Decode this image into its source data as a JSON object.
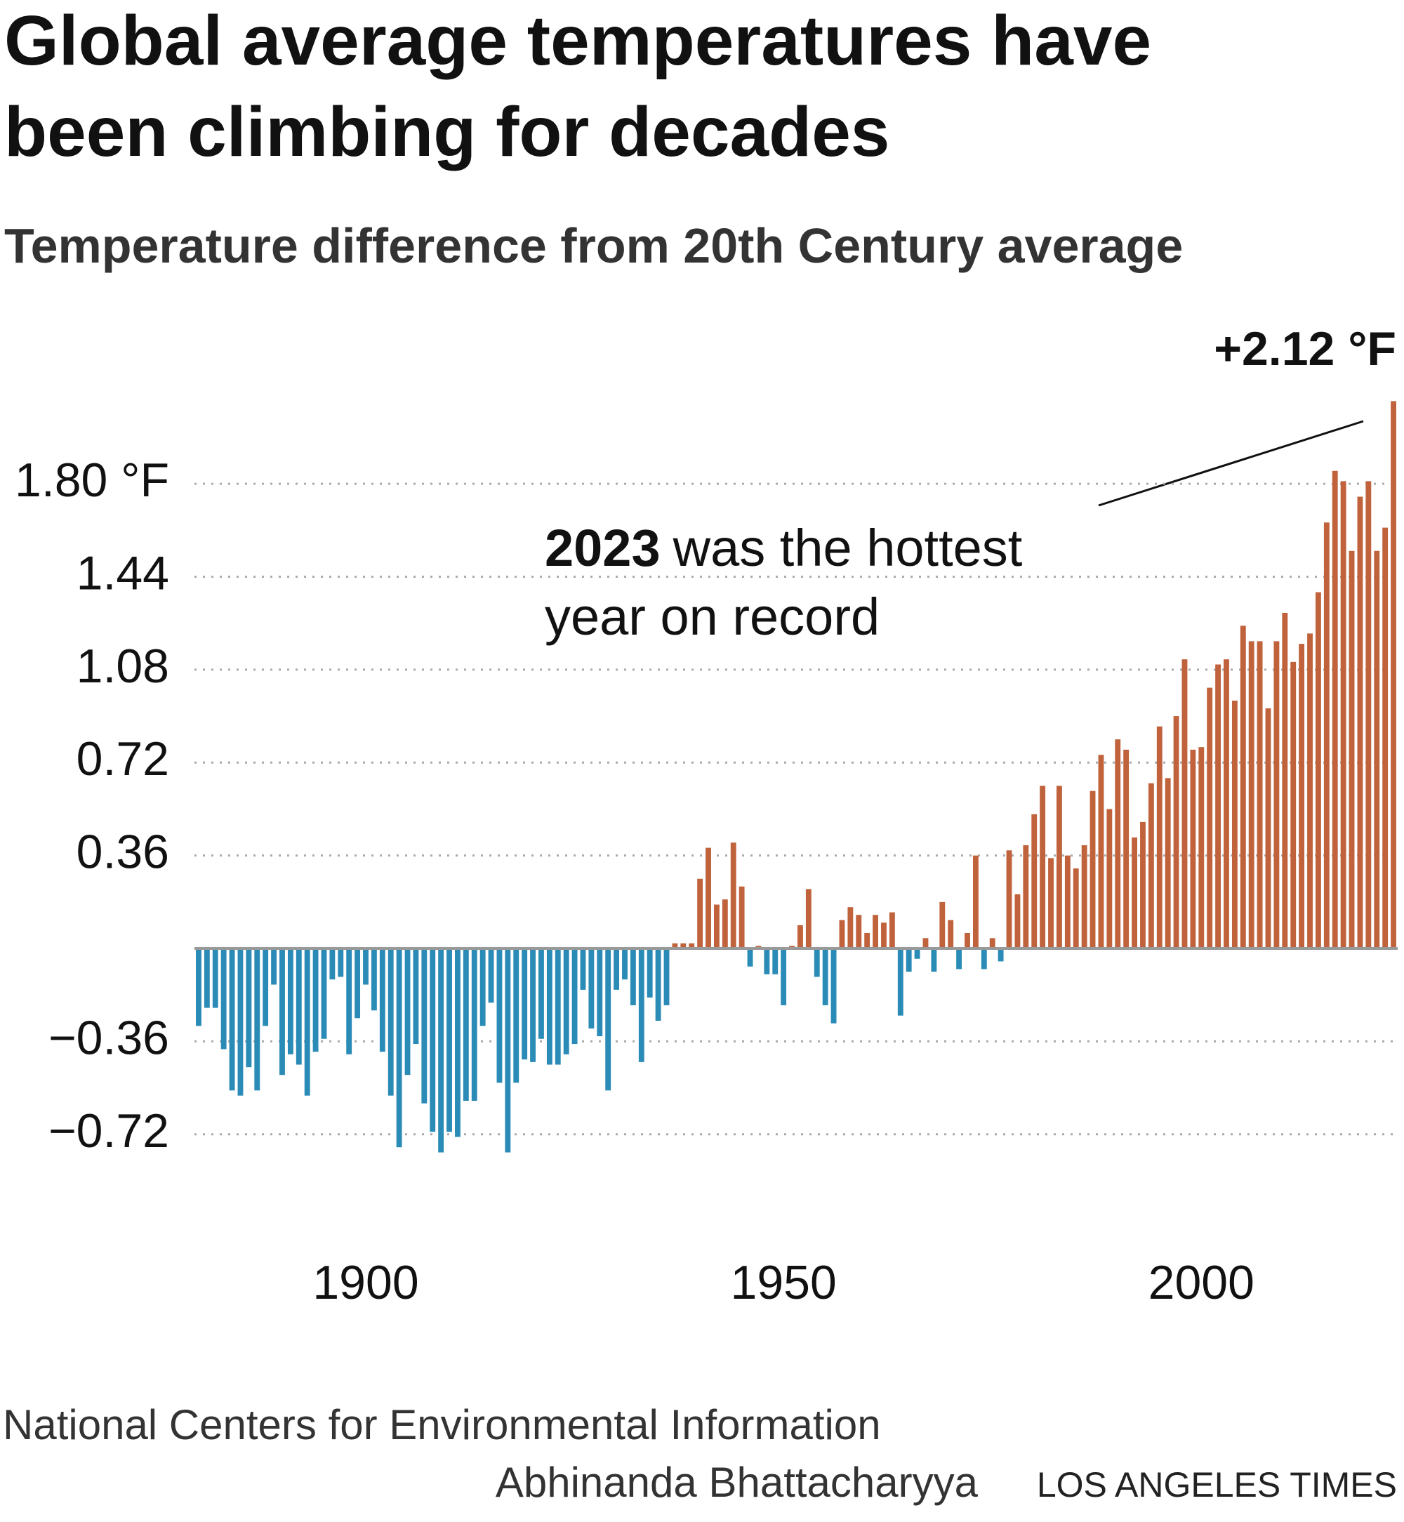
{
  "chart_data": {
    "type": "bar",
    "title": [
      "Global average temperatures have",
      "been climbing for decades"
    ],
    "subtitle": "Temperature difference from 20th Century average",
    "x": [
      1880,
      1881,
      1882,
      1883,
      1884,
      1885,
      1886,
      1887,
      1888,
      1889,
      1890,
      1891,
      1892,
      1893,
      1894,
      1895,
      1896,
      1897,
      1898,
      1899,
      1900,
      1901,
      1902,
      1903,
      1904,
      1905,
      1906,
      1907,
      1908,
      1909,
      1910,
      1911,
      1912,
      1913,
      1914,
      1915,
      1916,
      1917,
      1918,
      1919,
      1920,
      1921,
      1922,
      1923,
      1924,
      1925,
      1926,
      1927,
      1928,
      1929,
      1930,
      1931,
      1932,
      1933,
      1934,
      1935,
      1936,
      1937,
      1938,
      1939,
      1940,
      1941,
      1942,
      1943,
      1944,
      1945,
      1946,
      1947,
      1948,
      1949,
      1950,
      1951,
      1952,
      1953,
      1954,
      1955,
      1956,
      1957,
      1958,
      1959,
      1960,
      1961,
      1962,
      1963,
      1964,
      1965,
      1966,
      1967,
      1968,
      1969,
      1970,
      1971,
      1972,
      1973,
      1974,
      1975,
      1976,
      1977,
      1978,
      1979,
      1980,
      1981,
      1982,
      1983,
      1984,
      1985,
      1986,
      1987,
      1988,
      1989,
      1990,
      1991,
      1992,
      1993,
      1994,
      1995,
      1996,
      1997,
      1998,
      1999,
      2000,
      2001,
      2002,
      2003,
      2004,
      2005,
      2006,
      2007,
      2008,
      2009,
      2010,
      2011,
      2012,
      2013,
      2014,
      2015,
      2016,
      2017,
      2018,
      2019,
      2020,
      2021,
      2022,
      2023
    ],
    "values": [
      -0.3,
      -0.23,
      -0.23,
      -0.39,
      -0.55,
      -0.57,
      -0.46,
      -0.55,
      -0.3,
      -0.14,
      -0.49,
      -0.41,
      -0.45,
      -0.57,
      -0.4,
      -0.35,
      -0.12,
      -0.11,
      -0.41,
      -0.27,
      -0.14,
      -0.24,
      -0.4,
      -0.57,
      -0.77,
      -0.49,
      -0.37,
      -0.6,
      -0.71,
      -0.79,
      -0.71,
      -0.73,
      -0.59,
      -0.59,
      -0.3,
      -0.21,
      -0.52,
      -0.79,
      -0.52,
      -0.43,
      -0.44,
      -0.35,
      -0.45,
      -0.45,
      -0.41,
      -0.37,
      -0.16,
      -0.31,
      -0.34,
      -0.55,
      -0.16,
      -0.12,
      -0.22,
      -0.44,
      -0.19,
      -0.28,
      -0.22,
      0.02,
      0.02,
      0.02,
      0.27,
      0.39,
      0.17,
      0.19,
      0.41,
      0.24,
      -0.07,
      0.01,
      -0.1,
      -0.1,
      -0.22,
      0.01,
      0.09,
      0.23,
      -0.11,
      -0.22,
      -0.29,
      0.11,
      0.16,
      0.13,
      0.06,
      0.13,
      0.1,
      0.14,
      -0.26,
      -0.09,
      -0.04,
      0.04,
      -0.09,
      0.18,
      0.11,
      -0.08,
      0.06,
      0.36,
      -0.08,
      0.04,
      -0.05,
      0.38,
      0.21,
      0.4,
      0.52,
      0.63,
      0.35,
      0.63,
      0.36,
      0.31,
      0.4,
      0.61,
      0.75,
      0.54,
      0.81,
      0.77,
      0.43,
      0.49,
      0.64,
      0.86,
      0.66,
      0.9,
      1.12,
      0.77,
      0.78,
      1.01,
      1.1,
      1.12,
      0.96,
      1.25,
      1.19,
      1.19,
      0.93,
      1.19,
      1.3,
      1.11,
      1.18,
      1.22,
      1.38,
      1.65,
      1.85,
      1.81,
      1.54,
      1.75,
      1.81,
      1.54,
      1.63,
      2.12
    ],
    "value_labels": [
      null,
      null,
      null,
      null,
      null,
      null,
      null,
      null,
      null,
      null,
      null,
      null,
      null,
      null,
      null,
      null,
      null,
      null,
      null,
      null,
      null,
      null,
      null,
      null,
      null,
      null,
      null,
      null,
      null,
      null,
      null,
      null,
      null,
      null,
      null,
      null,
      null,
      null,
      null,
      null,
      null,
      null,
      null,
      null,
      null,
      null,
      null,
      null,
      null,
      null,
      null,
      null,
      null,
      null,
      null,
      null,
      null,
      null,
      null,
      null,
      null,
      null,
      null,
      null,
      null,
      null,
      null,
      null,
      null,
      null,
      null,
      null,
      null,
      null,
      null,
      null,
      null,
      null,
      null,
      null,
      null,
      null,
      null,
      null,
      null,
      null,
      null,
      null,
      null,
      null,
      null,
      null,
      null,
      null,
      null,
      null,
      null,
      null,
      null,
      null,
      null,
      null,
      null,
      null,
      null,
      null,
      null,
      null,
      null,
      null,
      null,
      null,
      null,
      null,
      null,
      null,
      null,
      null,
      null,
      null,
      null,
      null,
      null,
      null,
      null,
      null,
      null,
      null,
      null,
      null,
      null,
      null,
      null,
      null,
      null,
      null,
      null,
      null,
      null,
      null,
      null,
      null,
      null,
      "+2.12 °F"
    ],
    "colors": {
      "positive": "#c0623b",
      "negative": "#2a8bb6"
    },
    "xlim": [
      1879.5,
      2023.5
    ],
    "xticks": [
      1900,
      1950,
      2000
    ],
    "ylim": [
      -0.9,
      2.2
    ],
    "yticks": [
      {
        "value": -0.72,
        "label": "−0.72"
      },
      {
        "value": -0.36,
        "label": "−0.36"
      },
      0.36,
      0.72,
      1.08,
      1.44,
      {
        "value": 1.8,
        "label": "1.80 °F"
      }
    ],
    "grid": true,
    "annotation": {
      "bold": "2023",
      "lines": [
        "was the hottest",
        "year on record"
      ]
    },
    "source": "National Centers for Environmental Information",
    "credit": "Abhinanda Bhattacharyya",
    "publisher": "LOS ANGELES TIMES"
  }
}
